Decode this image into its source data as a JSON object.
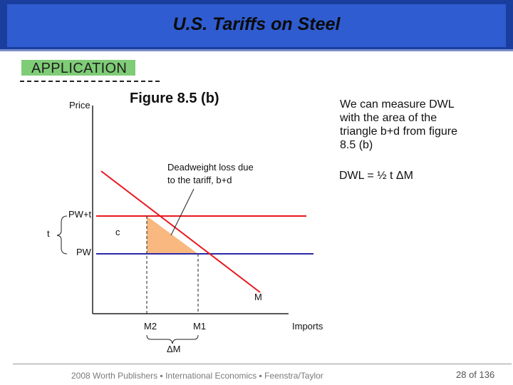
{
  "slide": {
    "title": "U.S. Tariffs on Steel",
    "section_label": "APPLICATION",
    "figure_title": "Figure 8.5 (b)",
    "note_lines": [
      "We can measure DWL",
      "with the area of the",
      "triangle b+d from figure",
      "8.5 (b)"
    ],
    "formula": "DWL = ½ t ΔM",
    "footer": "2008 Worth Publishers ▪ International Economics ▪ Feenstra/Taylor",
    "page_number": "28 of 136"
  },
  "diagram": {
    "y_axis_label": "Price",
    "x_axis_label": "Imports",
    "annotation_line1": "Deadweight loss due",
    "annotation_line2": "to the tariff, b+d",
    "price_tariff_label": "PW+t",
    "price_world_label": "PW",
    "tariff_label": "t",
    "area_c_label": "c",
    "demand_label": "M",
    "m2_label": "M2",
    "m1_label": "M1",
    "delta_m_label": "ΔM",
    "colors": {
      "demand_line": "#e8191f",
      "tariff_price_line": "#e8191f",
      "world_price_line": "#2a2aa8",
      "dwl_fill": "#f8b880",
      "axes": "#222222"
    }
  }
}
